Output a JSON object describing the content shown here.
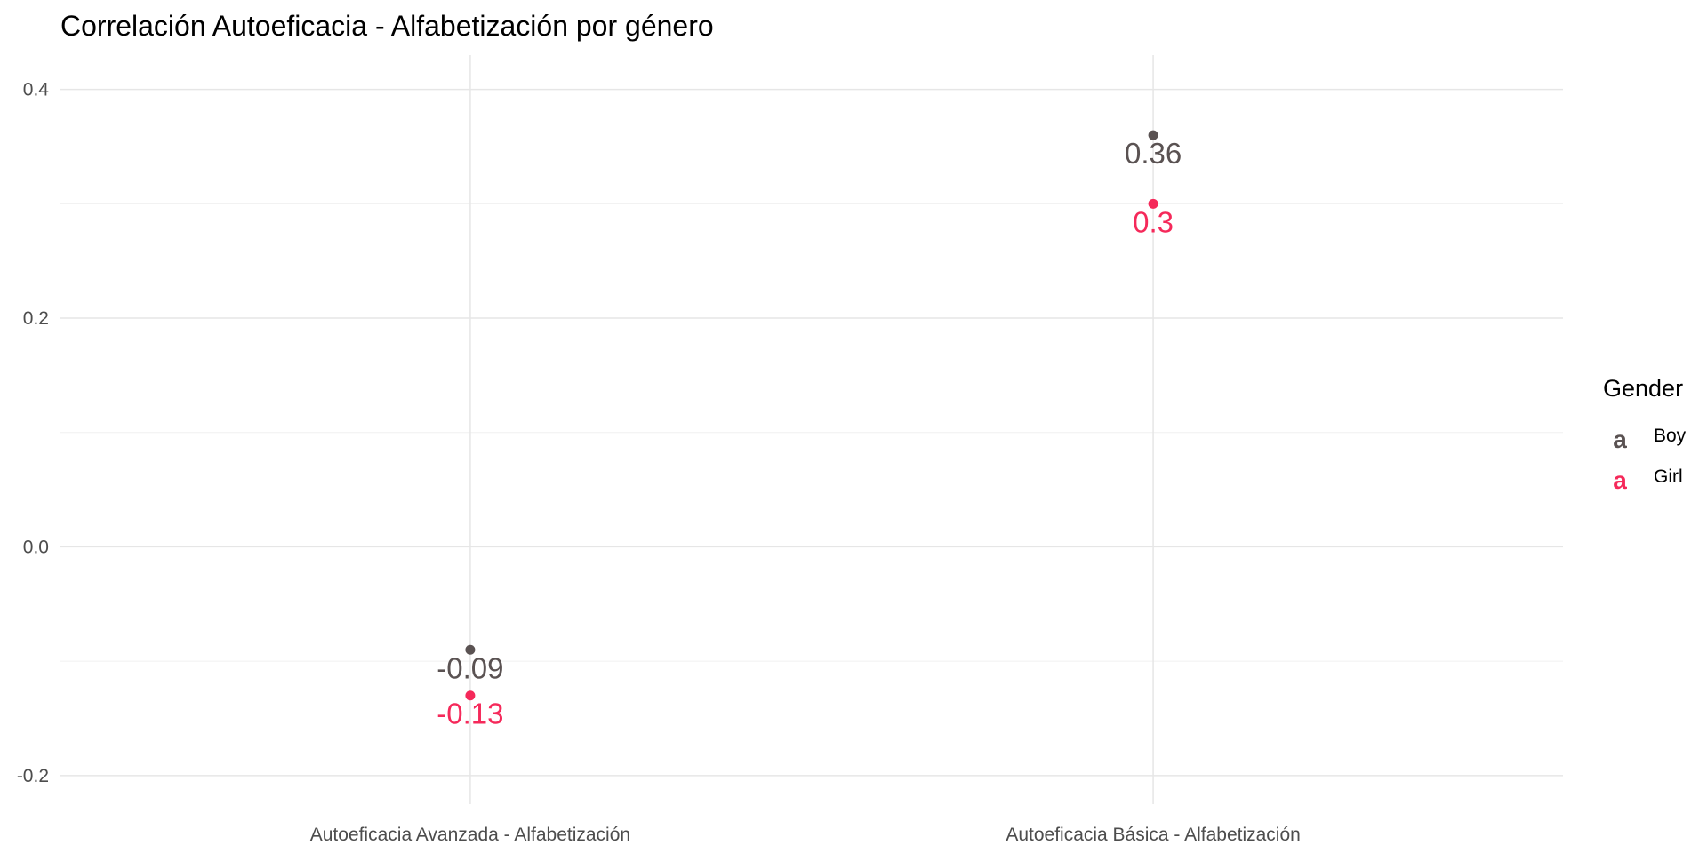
{
  "chart_data": {
    "type": "scatter",
    "title": "Correlación Autoeficacia - Alfabetización por género",
    "xlabel": "",
    "ylabel": "",
    "categories": [
      "Autoeficacia Avanzada - Alfabetización",
      "Autoeficacia Básica - Alfabetización"
    ],
    "series": [
      {
        "name": "Boy",
        "color": "#5a5252",
        "values": [
          -0.09,
          0.36
        ],
        "labels": [
          "-0.09",
          "0.36"
        ]
      },
      {
        "name": "Girl",
        "color": "#f5295a",
        "values": [
          -0.13,
          0.3
        ],
        "labels": [
          "-0.13",
          "0.3"
        ]
      }
    ],
    "ylim": [
      -0.225,
      0.43
    ],
    "yticks": [
      -0.2,
      0.0,
      0.2,
      0.4
    ],
    "ytick_labels": [
      "-0.2",
      "0.0",
      "0.2",
      "0.4"
    ],
    "grid": true,
    "legend": {
      "title": "Gender",
      "position": "right",
      "key_glyph": "a"
    }
  }
}
